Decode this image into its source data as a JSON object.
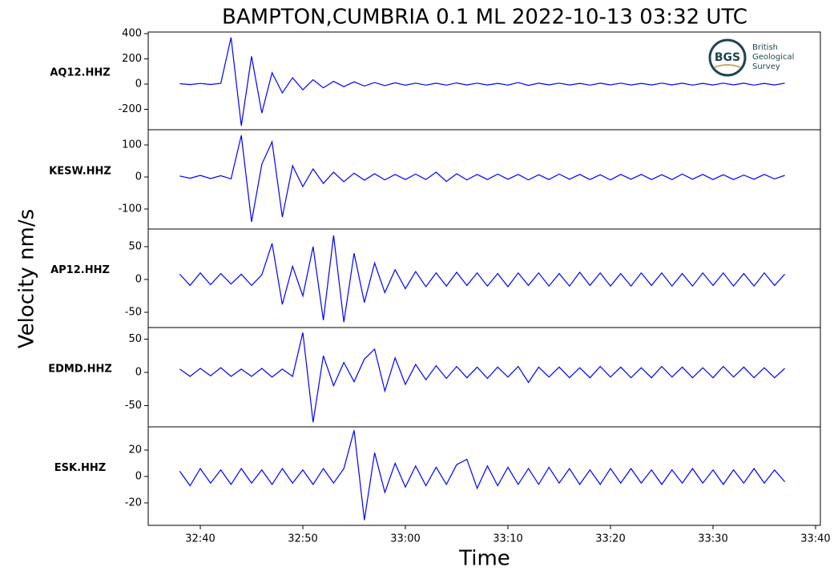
{
  "chart_data": {
    "type": "line",
    "title": "BAMPTON,CUMBRIA 0.1 ML   2022-10-13 03:32 UTC",
    "x_label": "Time",
    "y_label": "Velocity nm/s",
    "xlim": [
      34.92,
      100.47
    ],
    "xticks": [
      {
        "value": 40,
        "label": "32:40"
      },
      {
        "value": 50,
        "label": "32:50"
      },
      {
        "value": 60,
        "label": "33:00"
      },
      {
        "value": 70,
        "label": "33:10"
      },
      {
        "value": 80,
        "label": "33:20"
      },
      {
        "value": 90,
        "label": "33:30"
      },
      {
        "value": 100,
        "label": "33:40"
      }
    ],
    "x": [
      38,
      39,
      40,
      41,
      42,
      43,
      44,
      45,
      46,
      47,
      48,
      49,
      50,
      51,
      52,
      53,
      54,
      55,
      56,
      57,
      58,
      59,
      60,
      61,
      62,
      63,
      64,
      65,
      66,
      67,
      68,
      69,
      70,
      71,
      72,
      73,
      74,
      75,
      76,
      77,
      78,
      79,
      80,
      81,
      82,
      83,
      84,
      85,
      86,
      87,
      88,
      89,
      90,
      91,
      92,
      93,
      94,
      95,
      96,
      97
    ],
    "series": [
      {
        "name": "AQ12.HHZ",
        "color": "#0000ff",
        "ylim": [
          -362,
          413
        ],
        "yticks": [
          400,
          200,
          0,
          -200
        ],
        "values": [
          3,
          -4,
          5,
          -3,
          6,
          370,
          -330,
          220,
          -230,
          90,
          -70,
          50,
          -45,
          35,
          -30,
          22,
          -20,
          18,
          -15,
          12,
          -12,
          10,
          -9,
          8,
          -8,
          7,
          -8,
          9,
          -7,
          8,
          -7,
          6,
          -8,
          12,
          -10,
          7,
          -6,
          8,
          -7,
          6,
          -8,
          7,
          -6,
          8,
          -7,
          6,
          -7,
          8,
          -6,
          7,
          -8,
          6,
          -7,
          8,
          -6,
          7,
          -8,
          6,
          -7,
          8
        ]
      },
      {
        "name": "KESW.HHZ",
        "color": "#0000ff",
        "ylim": [
          -162.5,
          147.5
        ],
        "yticks": [
          100,
          0,
          -100
        ],
        "values": [
          3,
          -4,
          5,
          -5,
          4,
          -6,
          130,
          -140,
          40,
          110,
          -125,
          35,
          -30,
          25,
          -20,
          15,
          -15,
          12,
          -10,
          10,
          -9,
          8,
          -8,
          9,
          -8,
          15,
          -14,
          10,
          -9,
          8,
          -8,
          9,
          -7,
          8,
          -9,
          7,
          -8,
          9,
          -7,
          8,
          -8,
          7,
          -9,
          8,
          -7,
          8,
          -8,
          7,
          -8,
          9,
          -7,
          8,
          -8,
          7,
          -8,
          6,
          -7,
          8,
          -6,
          5
        ]
      },
      {
        "name": "AP12.HHZ",
        "color": "#0000ff",
        "ylim": [
          -73.2,
          76.8
        ],
        "yticks": [
          50,
          0,
          -50
        ],
        "values": [
          8,
          -9,
          10,
          -8,
          9,
          -7,
          8,
          -9,
          7,
          55,
          -38,
          20,
          -25,
          50,
          -62,
          67,
          -65,
          40,
          -35,
          25,
          -20,
          15,
          -14,
          12,
          -11,
          10,
          -10,
          11,
          -9,
          10,
          -10,
          9,
          -11,
          10,
          -9,
          10,
          -10,
          9,
          -10,
          11,
          -9,
          10,
          -10,
          9,
          -10,
          10,
          -9,
          10,
          -10,
          9,
          -10,
          10,
          -9,
          10,
          -10,
          9,
          -10,
          10,
          -9,
          8
        ]
      },
      {
        "name": "EDMD.HHZ",
        "color": "#0000ff",
        "ylim": [
          -81.9,
          67.5
        ],
        "yticks": [
          50,
          0,
          -50
        ],
        "values": [
          5,
          -6,
          6,
          -5,
          7,
          -6,
          5,
          -6,
          6,
          -7,
          5,
          -6,
          60,
          -75,
          25,
          -20,
          15,
          -14,
          20,
          35,
          -28,
          22,
          -18,
          12,
          -11,
          10,
          -9,
          9,
          -8,
          8,
          -9,
          8,
          -7,
          9,
          -15,
          8,
          -7,
          8,
          -8,
          7,
          -8,
          9,
          -7,
          8,
          -8,
          7,
          -8,
          9,
          -7,
          8,
          -8,
          7,
          -8,
          9,
          -7,
          8,
          -8,
          7,
          -8,
          6
        ]
      },
      {
        "name": "ESK.HHZ",
        "color": "#0000ff",
        "ylim": [
          -37.0,
          37.6
        ],
        "yticks": [
          20,
          0,
          -20
        ],
        "values": [
          4,
          -7,
          6,
          -5,
          5,
          -6,
          6,
          -5,
          5,
          -6,
          6,
          -5,
          5,
          -6,
          6,
          -5,
          6,
          35,
          -33,
          18,
          -12,
          10,
          -8,
          8,
          -7,
          7,
          -6,
          9,
          13,
          -9,
          8,
          -7,
          7,
          -6,
          6,
          -6,
          7,
          -5,
          6,
          -6,
          5,
          -6,
          6,
          -5,
          6,
          -5,
          5,
          -6,
          5,
          -5,
          6,
          -5,
          5,
          -6,
          5,
          -5,
          6,
          -5,
          5,
          -4
        ]
      }
    ]
  },
  "logo": {
    "initials": "BGS",
    "lines": [
      "British",
      "Geological",
      "Survey"
    ]
  }
}
